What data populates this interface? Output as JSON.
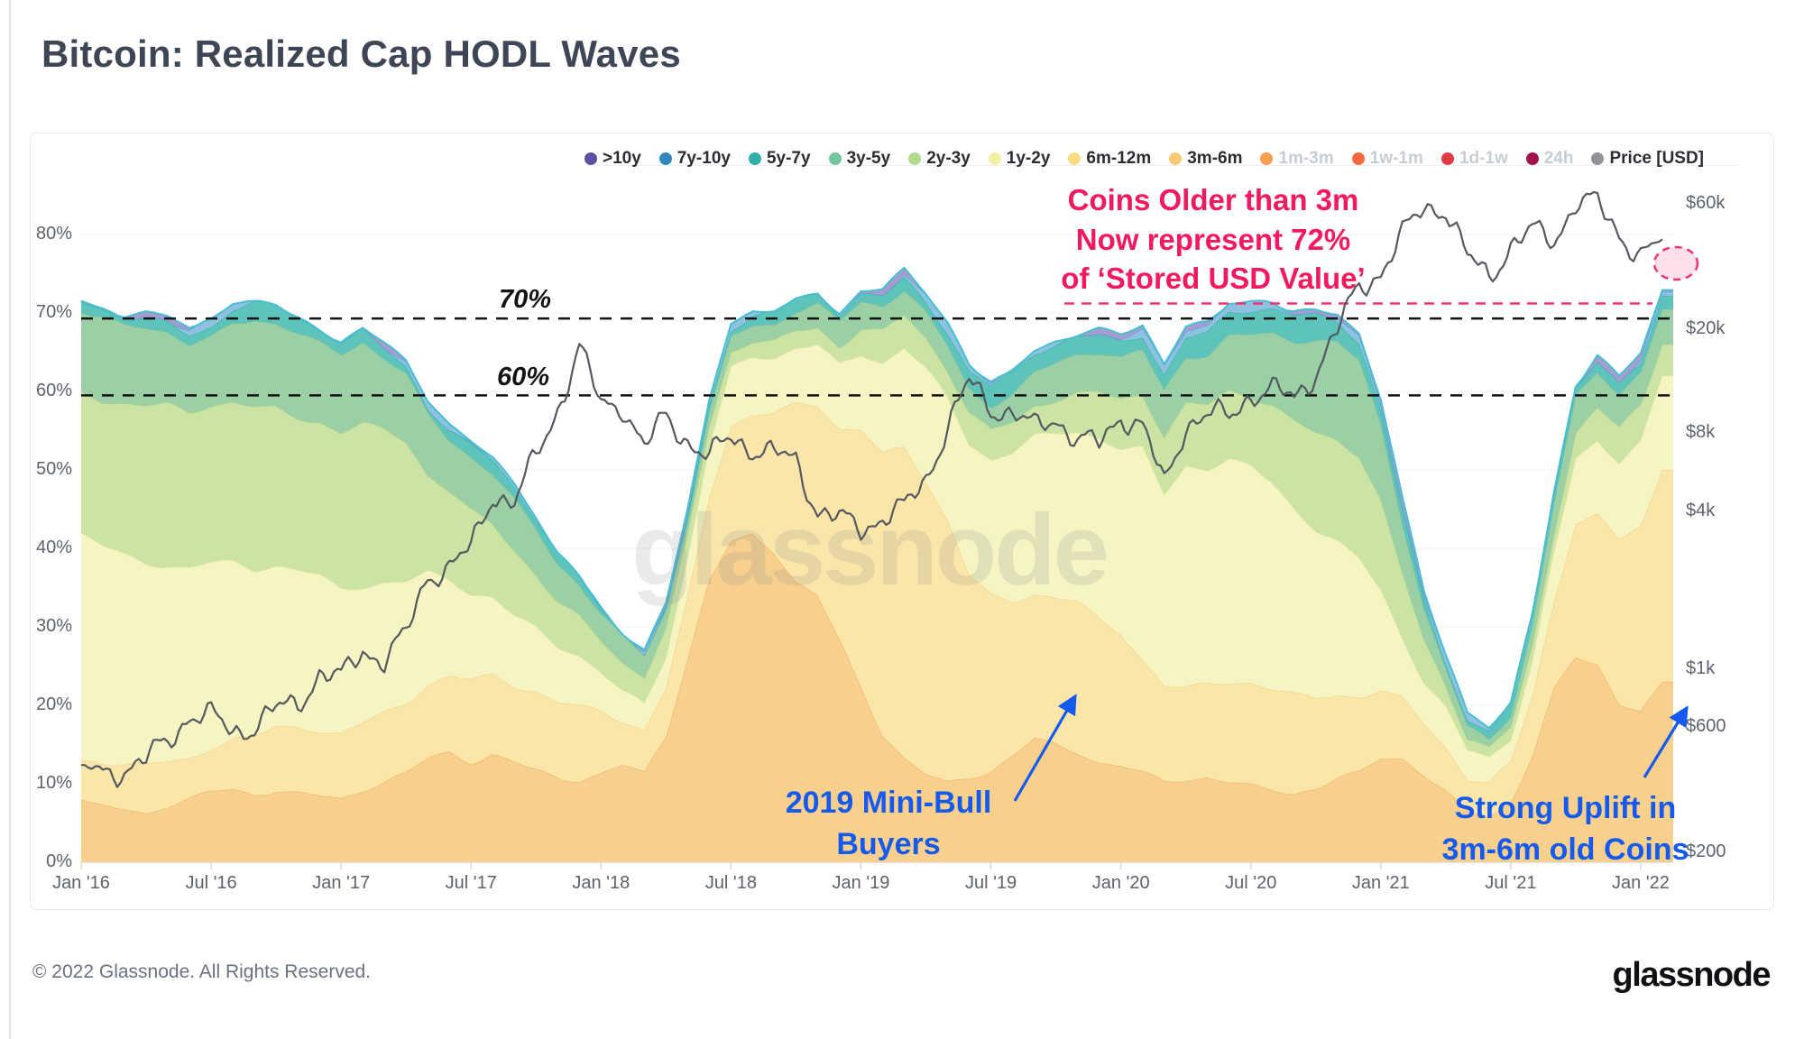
{
  "page": {
    "title": "Bitcoin: Realized Cap HODL Waves",
    "watermark": "glassnode",
    "footer": {
      "copyright": "© 2022 Glassnode. All Rights Reserved.",
      "logo": "glassnode"
    }
  },
  "legend": {
    "items": [
      {
        "label": ">10y",
        "color": "#5e4fa2",
        "active": true
      },
      {
        "label": "7y-10y",
        "color": "#3288bd",
        "active": true
      },
      {
        "label": "5y-7y",
        "color": "#2fafa5",
        "active": true
      },
      {
        "label": "3y-5y",
        "color": "#72c69a",
        "active": true
      },
      {
        "label": "2y-3y",
        "color": "#b1da8e",
        "active": true
      },
      {
        "label": "1y-2y",
        "color": "#f1f1a3",
        "active": true
      },
      {
        "label": "6m-12m",
        "color": "#fcdd82",
        "active": true
      },
      {
        "label": "3m-6m",
        "color": "#fbca72",
        "active": true
      },
      {
        "label": "1m-3m",
        "color": "#fa9e51",
        "active": false
      },
      {
        "label": "1w-1m",
        "color": "#f4693e",
        "active": false
      },
      {
        "label": "1d-1w",
        "color": "#e03b42",
        "active": false
      },
      {
        "label": "24h",
        "color": "#a2114c",
        "active": false
      },
      {
        "label": "Price [USD]",
        "color": "#8e9499",
        "active": true
      }
    ]
  },
  "annotations": {
    "seventy": "70%",
    "sixty": "60%",
    "pink": {
      "lines": [
        "Coins Older than 3m",
        "Now represent 72%",
        "of ‘Stored USD Value’"
      ],
      "color": "#f2195f"
    },
    "minibull": {
      "lines": [
        "2019 Mini-Bull",
        "Buyers"
      ],
      "color": "#1659ee"
    },
    "uplift": {
      "lines": [
        "Strong Uplift in",
        "3m-6m old Coins"
      ],
      "color": "#1659ee"
    }
  },
  "axes": {
    "left": [
      {
        "label": "0%",
        "v": 0
      },
      {
        "label": "10%",
        "v": 10
      },
      {
        "label": "20%",
        "v": 20
      },
      {
        "label": "30%",
        "v": 30
      },
      {
        "label": "40%",
        "v": 40
      },
      {
        "label": "50%",
        "v": 50
      },
      {
        "label": "60%",
        "v": 60
      },
      {
        "label": "70%",
        "v": 70
      },
      {
        "label": "80%",
        "v": 80
      }
    ],
    "right": [
      {
        "label": "$60k",
        "p": 60000
      },
      {
        "label": "$20k",
        "p": 20000
      },
      {
        "label": "$8k",
        "p": 8000
      },
      {
        "label": "$4k",
        "p": 4000
      },
      {
        "label": "$1k",
        "p": 1000
      },
      {
        "label": "$600",
        "p": 600
      },
      {
        "label": "$200",
        "p": 200
      }
    ],
    "x": [
      {
        "label": "Jan '16",
        "m": 0
      },
      {
        "label": "Jul '16",
        "m": 6
      },
      {
        "label": "Jan '17",
        "m": 12
      },
      {
        "label": "Jul '17",
        "m": 18
      },
      {
        "label": "Jan '18",
        "m": 24
      },
      {
        "label": "Jul '18",
        "m": 30
      },
      {
        "label": "Jan '19",
        "m": 36
      },
      {
        "label": "Jul '19",
        "m": 42
      },
      {
        "label": "Jan '20",
        "m": 48
      },
      {
        "label": "Jul '20",
        "m": 54
      },
      {
        "label": "Jan '21",
        "m": 60
      },
      {
        "label": "Jul '21",
        "m": 66
      },
      {
        "label": "Jan '22",
        "m": 72
      }
    ]
  },
  "chart_data": {
    "type": "area",
    "stacked": true,
    "title": "Bitcoin: Realized Cap HODL Waves",
    "x_unit": "month",
    "x_range": [
      "2016-01",
      "2022-02"
    ],
    "y_left": {
      "unit": "%",
      "min": 0,
      "max": 84,
      "gridlines": [
        0,
        10,
        20,
        30,
        40,
        50,
        60,
        70,
        80
      ]
    },
    "y_right": {
      "unit": "USD",
      "scale": "log",
      "ticks": [
        200,
        600,
        1000,
        4000,
        8000,
        20000,
        60000
      ]
    },
    "reference_lines": [
      {
        "label": "70%",
        "value": 69.3
      },
      {
        "label": "60%",
        "value": 59.5
      }
    ],
    "pink_reference": {
      "value": 71.2,
      "note": "72% of Stored USD Value"
    },
    "series": [
      {
        "name": "3m-6m",
        "color": "#f8d08e",
        "edge": "#f2b363",
        "values": [
          8,
          7,
          6.5,
          6,
          7,
          8,
          9,
          9.5,
          9,
          9.5,
          9,
          8.5,
          8,
          9,
          10,
          11,
          13,
          14,
          13,
          14,
          13,
          12,
          11,
          10.5,
          11,
          12,
          11,
          16,
          26,
          36,
          41,
          42,
          40,
          36,
          34,
          28,
          22,
          16,
          13,
          11,
          10,
          11,
          12,
          14,
          16,
          15,
          14,
          12.5,
          12,
          11,
          10,
          10.5,
          11,
          10.5,
          10,
          9.5,
          9,
          9.5,
          10.5,
          11,
          13,
          13,
          11,
          9,
          6.5,
          6,
          8,
          14,
          22,
          26,
          25,
          20,
          19,
          23
        ]
      },
      {
        "name": "6m-12m",
        "color": "#fbe6aa",
        "edge": "#f4d382",
        "values": [
          5,
          5.5,
          6,
          6.5,
          6,
          5.5,
          6,
          6.5,
          7,
          7.5,
          8,
          8,
          8,
          8.5,
          9,
          9.5,
          10,
          10,
          10.5,
          10,
          9.5,
          9.5,
          9,
          9,
          8,
          6,
          6,
          6.5,
          8,
          11,
          15,
          15,
          17,
          22,
          24,
          27,
          33,
          36,
          40,
          38,
          34,
          26,
          22,
          19,
          18,
          18.5,
          19,
          18,
          17,
          15,
          13,
          12,
          12,
          12.5,
          13,
          12.5,
          12,
          11,
          10.5,
          10,
          9,
          8,
          7,
          6,
          4.5,
          4.2,
          4.5,
          7,
          11,
          17,
          19,
          21,
          24,
          27
        ]
      },
      {
        "name": "1y-2y",
        "color": "#f6f4c3",
        "edge": "#e9e9a0",
        "values": [
          29,
          28,
          27,
          26,
          25,
          24,
          23,
          22,
          21,
          20.5,
          20,
          20,
          19,
          18,
          17,
          15.5,
          14,
          12,
          10.5,
          9.5,
          8.5,
          8,
          7.5,
          7,
          5.5,
          4,
          3.5,
          4,
          5,
          6,
          6.5,
          7,
          7,
          7.5,
          8,
          8.5,
          10,
          12,
          13,
          14,
          15,
          16,
          17,
          19,
          20,
          21,
          22,
          24,
          24,
          27,
          24,
          28,
          27,
          28,
          27,
          26,
          24,
          22,
          20,
          18,
          13,
          8,
          5,
          4.5,
          3,
          2.8,
          3,
          4.5,
          6.5,
          8.5,
          10,
          10.5,
          11,
          12
        ]
      },
      {
        "name": "2y-3y",
        "color": "#cbe3a4",
        "edge": "#aed385",
        "values": [
          18,
          18.5,
          19,
          19.5,
          20,
          19.5,
          20,
          20.5,
          21,
          20.5,
          20,
          20,
          20,
          20.5,
          19,
          17.5,
          12,
          11,
          10.5,
          9.5,
          9,
          7.5,
          6,
          5,
          4,
          3.5,
          3,
          3,
          2.5,
          2.5,
          2.5,
          2.5,
          2.5,
          2.5,
          2.5,
          2.5,
          3,
          3.5,
          3.5,
          3.5,
          3.5,
          4,
          4,
          4.2,
          4.5,
          4.8,
          5,
          5.5,
          6,
          6.5,
          7,
          7.5,
          8,
          9,
          9.5,
          10.5,
          11.5,
          12.5,
          13,
          13,
          11,
          7.5,
          4.8,
          2.8,
          1.8,
          1.6,
          1.8,
          2.4,
          3,
          3.6,
          4,
          3.8,
          4,
          4
        ]
      },
      {
        "name": "3y-5y",
        "color": "#9bcfa6",
        "edge": "#7cc195",
        "values": [
          10,
          10,
          9.5,
          10,
          9.5,
          9,
          9,
          10.5,
          11.5,
          11,
          10.5,
          9.5,
          9.5,
          10,
          9,
          8.5,
          8,
          7,
          7.5,
          7,
          6.5,
          5.5,
          4.5,
          3.8,
          3,
          2.8,
          2.6,
          2.5,
          2.3,
          2.2,
          2.2,
          2.2,
          2.3,
          2.4,
          2.5,
          2.6,
          3,
          3.2,
          3.4,
          3.5,
          3.5,
          3.6,
          3.6,
          3.8,
          4,
          4.2,
          4.5,
          4.8,
          5,
          5.5,
          6,
          6.5,
          7,
          7.5,
          8,
          9,
          10,
          11.5,
          12,
          11.5,
          9.5,
          6.8,
          4.5,
          2.6,
          1.7,
          1.5,
          1.8,
          2.5,
          3.2,
          3.9,
          4.3,
          4.1,
          4.3,
          4.5
        ]
      },
      {
        "name": "5y-7y",
        "color": "#5ec3ba",
        "edge": "#3cb3a7",
        "values": [
          1.4,
          1.4,
          1.4,
          1.5,
          1.5,
          1.5,
          1.5,
          1.6,
          1.6,
          1.6,
          1.6,
          1.6,
          1.6,
          1.7,
          1.6,
          1.5,
          1.4,
          1.3,
          1.3,
          1.2,
          1.1,
          1,
          0.9,
          0.8,
          0.7,
          0.7,
          0.6,
          0.6,
          0.6,
          0.7,
          0.8,
          0.8,
          0.9,
          1,
          1.1,
          1.2,
          1.4,
          1.6,
          1.8,
          1.9,
          1.9,
          2,
          2,
          2.1,
          2.1,
          2.2,
          2.2,
          2.3,
          2.4,
          2.5,
          2.5,
          2.6,
          2.6,
          2.7,
          2.7,
          2.8,
          2.8,
          2.9,
          2.9,
          2.8,
          2.4,
          1.8,
          1.3,
          0.9,
          0.7,
          0.65,
          0.7,
          0.9,
          1.1,
          1.3,
          1.5,
          1.5,
          1.6,
          1.7
        ]
      },
      {
        "name": "7y-10y",
        "color": "#8fc2e2",
        "edge": "#5a9fd0",
        "values": [
          0.15,
          0.15,
          0.15,
          0.15,
          0.16,
          0.16,
          0.17,
          0.17,
          0.18,
          0.18,
          0.19,
          0.2,
          0.2,
          0.21,
          0.2,
          0.2,
          0.19,
          0.18,
          0.18,
          0.17,
          0.16,
          0.15,
          0.14,
          0.13,
          0.13,
          0.13,
          0.12,
          0.12,
          0.13,
          0.14,
          0.15,
          0.16,
          0.17,
          0.19,
          0.2,
          0.22,
          0.25,
          0.3,
          0.35,
          0.38,
          0.38,
          0.4,
          0.4,
          0.42,
          0.44,
          0.46,
          0.48,
          0.5,
          0.55,
          0.6,
          0.62,
          0.65,
          0.68,
          0.7,
          0.72,
          0.75,
          0.78,
          0.8,
          0.82,
          0.8,
          0.7,
          0.55,
          0.4,
          0.28,
          0.22,
          0.2,
          0.22,
          0.28,
          0.35,
          0.42,
          0.46,
          0.45,
          0.48,
          0.5
        ]
      },
      {
        "name": ">10y",
        "color": "#a79cd0",
        "edge": "#7a68b3",
        "values": [
          0,
          0,
          0,
          0,
          0,
          0,
          0,
          0,
          0,
          0,
          0,
          0,
          0,
          0,
          0,
          0,
          0,
          0,
          0,
          0,
          0,
          0,
          0,
          0,
          0,
          0,
          0,
          0,
          0,
          0,
          0,
          0,
          0,
          0,
          0,
          0,
          0.05,
          0.06,
          0.07,
          0.08,
          0.09,
          0.1,
          0.1,
          0.11,
          0.12,
          0.13,
          0.14,
          0.15,
          0.16,
          0.17,
          0.18,
          0.19,
          0.2,
          0.21,
          0.22,
          0.23,
          0.24,
          0.25,
          0.26,
          0.26,
          0.24,
          0.2,
          0.15,
          0.1,
          0.08,
          0.08,
          0.09,
          0.11,
          0.14,
          0.17,
          0.19,
          0.19,
          0.2,
          0.22
        ]
      }
    ],
    "price": {
      "name": "Price [USD]",
      "color": "#54595f",
      "scale": "log",
      "values": [
        430,
        400,
        415,
        450,
        530,
        670,
        660,
        575,
        610,
        700,
        740,
        960,
        920,
        1190,
        1080,
        1350,
        2300,
        2450,
        2870,
        4700,
        4340,
        6450,
        9900,
        17000,
        10200,
        10300,
        7000,
        9250,
        7500,
        6400,
        7750,
        7000,
        6600,
        6300,
        4030,
        3740,
        3460,
        3820,
        4100,
        5320,
        8560,
        12500,
        10000,
        9600,
        8300,
        9150,
        7550,
        7200,
        9350,
        8550,
        5000,
        8650,
        9450,
        9140,
        11350,
        11650,
        10780,
        13800,
        19700,
        29000,
        33100,
        45200,
        58800,
        57750,
        37300,
        32000,
        41600,
        47150,
        43800,
        61300,
        60000,
        46200,
        38500,
        44000
      ]
    }
  }
}
